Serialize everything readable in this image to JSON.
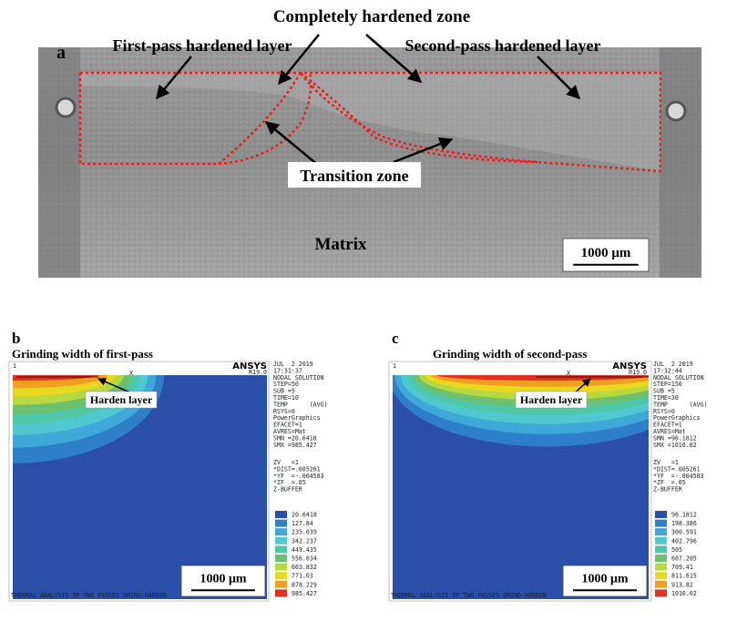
{
  "panel_a": {
    "label": "a",
    "callouts": [
      "Completely hardened zone",
      "First-pass hardened layer",
      "Second-pass hardened layer",
      "Transition zone",
      "Matrix"
    ],
    "scale_bar": "1000 μm"
  },
  "panel_b": {
    "label": "b",
    "title": "Grinding width of first-pass",
    "annotation": "Harden layer",
    "scale_bar": "1000 μm",
    "axis_marks": [
      "1",
      "X"
    ],
    "logo": "ANSYS",
    "version": "R19.0",
    "info": [
      "JUL  2 2019",
      "17:31:37",
      "NODAL SOLUTION",
      "STEP=50",
      "SUB =5",
      "TIME=10",
      "TEMP      (AVG)",
      "RSYS=0",
      "PowerGraphics",
      "EFACET=1",
      "AVRES=Mat",
      "SMN =20.6418",
      "SMX =985.427"
    ],
    "view": [
      "ZV   =1",
      "*DIST=.005261",
      "*YF  =-.004583",
      "*ZF  =.05",
      "Z-BUFFER"
    ],
    "legend": [
      "20.6418",
      "127.84",
      "235.039",
      "342.237",
      "449.435",
      "556.634",
      "663.832",
      "771.03",
      "878.229",
      "985.427"
    ],
    "footer": "THERMAL ANALYSIS OF TWO PASSES GRIND-HARDEN"
  },
  "panel_c": {
    "label": "c",
    "title": "Grinding width of second-pass",
    "annotation": "Harden layer",
    "scale_bar": "1000 μm",
    "axis_marks": [
      "1",
      "X"
    ],
    "logo": "ANSYS",
    "version": "R19.0",
    "info": [
      "JUL  2 2019",
      "17:32:44",
      "NODAL SOLUTION",
      "STEP=150",
      "SUB =5",
      "TIME=30",
      "TEMP      (AVG)",
      "RSYS=0",
      "PowerGraphics",
      "EFACET=1",
      "AVRES=Mat",
      "SMN =96.1812",
      "SMX =1016.02"
    ],
    "view": [
      "ZV   =1",
      "*DIST=.005261",
      "*YF  =-.004583",
      "*ZF  =.05",
      "Z-BUFFER"
    ],
    "legend": [
      "96.1812",
      "198.386",
      "300.591",
      "402.796",
      "505",
      "607.205",
      "709.41",
      "811.615",
      "913.82",
      "1016.02"
    ],
    "footer": "THERMAL ANALYSIS OF TWO PASSES GRIND-HARDEN"
  }
}
